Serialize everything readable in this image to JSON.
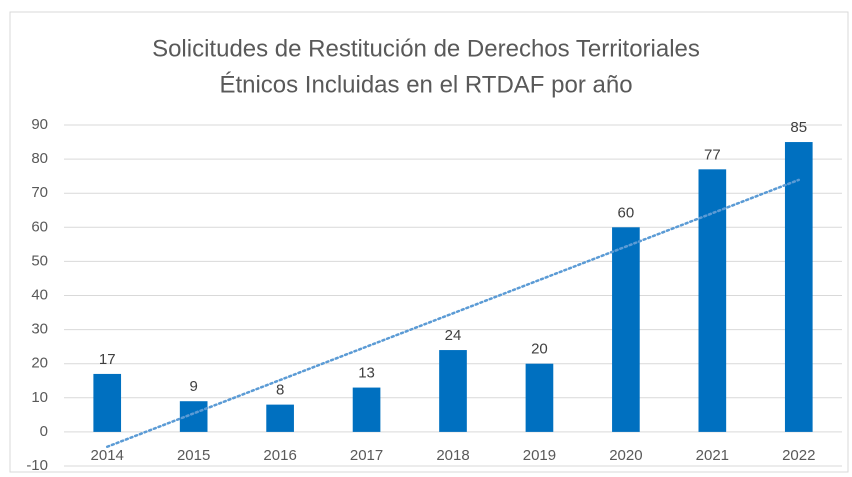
{
  "chart_data": {
    "type": "bar",
    "title": [
      "Solicitudes de Restitución de Derechos Territoriales",
      "Étnicos Incluidas en el RTDAF por año"
    ],
    "categories": [
      "2014",
      "2015",
      "2016",
      "2017",
      "2018",
      "2019",
      "2020",
      "2021",
      "2022"
    ],
    "values": [
      17,
      9,
      8,
      13,
      24,
      20,
      60,
      77,
      85
    ],
    "color": "#0070c0",
    "trendline": {
      "type": "linear",
      "color": "#5b9bd5"
    },
    "ylim": [
      -10,
      90
    ],
    "yticks": [
      -10,
      0,
      10,
      20,
      30,
      40,
      50,
      60,
      70,
      80,
      90
    ],
    "grid": true
  }
}
